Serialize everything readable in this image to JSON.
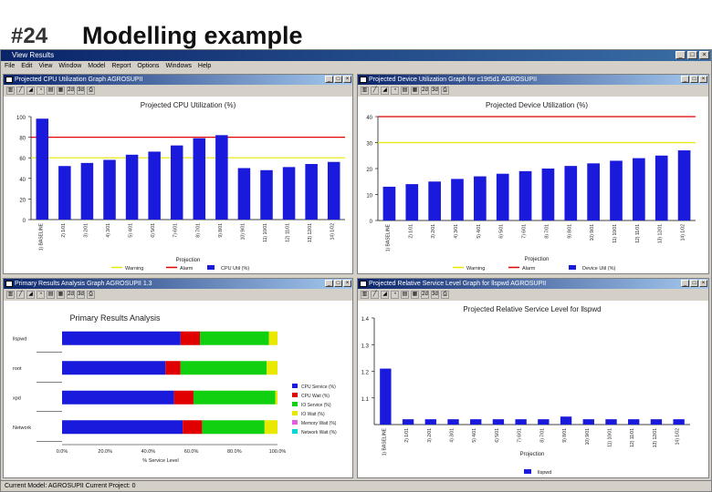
{
  "slide": {
    "number": "#24",
    "title": "Modelling example"
  },
  "app": {
    "title": "View Results",
    "menu": [
      "File",
      "Edit",
      "View",
      "Window",
      "Model",
      "Report",
      "Options",
      "Windows",
      "Help"
    ],
    "status": "Current Model: AGROSUPII   Current Project: 0"
  },
  "panes": [
    {
      "title": "Projected CPU Utilization Graph   AGROSUPII"
    },
    {
      "title": "Projected Device Utilization Graph for c19t5d1   AGROSUPII"
    },
    {
      "title": "Primary Results Analysis Graph   AGROSUPII 1.3"
    },
    {
      "title": "Projected Relative Service Level Graph for llspwd   AGROSUPII"
    }
  ],
  "colors": {
    "blue": "#1a1adc",
    "red": "#e00000",
    "yellow": "#e8e800",
    "green": "#10d010",
    "cyan": "#00d8d8"
  },
  "chart_data": [
    {
      "type": "bar",
      "title": "Projected CPU Utilization (%)",
      "xlabel": "Projection",
      "ylim": [
        0,
        100
      ],
      "yticks": [
        "100",
        "80",
        "60",
        "40",
        "20",
        "0"
      ],
      "categories": [
        "1) BASELINE",
        "2) 1/01",
        "3) 2/01",
        "4) 3/01",
        "5) 4/01",
        "6) 5/01",
        "7) 6/01",
        "8) 7/01",
        "9) 8/01",
        "10) 9/01",
        "11) 10/01",
        "12) 11/01",
        "13) 12/01",
        "14) 1/02"
      ],
      "values": [
        98,
        52,
        55,
        58,
        63,
        66,
        72,
        79,
        82,
        50,
        48,
        51,
        54,
        56
      ],
      "thresholds": {
        "warning": 60,
        "alarm": 80
      },
      "legend": [
        "Warning",
        "Alarm",
        "CPU Util (%)"
      ]
    },
    {
      "type": "bar",
      "title": "Projected Device Utilization (%)",
      "xlabel": "Projection",
      "ylim": [
        0,
        40
      ],
      "yticks": [
        "40",
        "30",
        "20",
        "10",
        "0"
      ],
      "categories": [
        "1) BASELINE",
        "2) 1/01",
        "3) 2/01",
        "4) 3/01",
        "5) 4/01",
        "6) 5/01",
        "7) 6/01",
        "8) 7/01",
        "9) 8/01",
        "10) 9/01",
        "11) 10/01",
        "12) 11/01",
        "13) 12/01",
        "14) 1/02"
      ],
      "values": [
        13,
        14,
        15,
        16,
        17,
        18,
        19,
        20,
        21,
        22,
        23,
        24,
        25,
        27
      ],
      "thresholds": {
        "warning": 30,
        "alarm": 40
      },
      "legend": [
        "Warning",
        "Alarm",
        "Device Util (%)"
      ]
    },
    {
      "type": "bar",
      "title": "Primary Results Analysis",
      "xlabel": "% Service Level",
      "xlim": [
        0,
        100
      ],
      "xticks": [
        "0.0%",
        "20.0%",
        "40.0%",
        "60.0%",
        "80.0%",
        "100.0%"
      ],
      "categories": [
        "llspwd",
        "root",
        "xpd",
        "Network"
      ],
      "series": [
        {
          "name": "CPU Service (%)",
          "values": [
            55,
            48,
            52,
            56
          ]
        },
        {
          "name": "CPU Wait (%)",
          "values": [
            9,
            7,
            9,
            9
          ]
        },
        {
          "name": "IO Service (%)",
          "values": [
            32,
            40,
            38,
            29
          ]
        },
        {
          "name": "IO Wait (%)",
          "values": [
            4,
            5,
            1,
            6
          ]
        },
        {
          "name": "Memory Wait (%)",
          "values": [
            0,
            0,
            0,
            0
          ]
        },
        {
          "name": "Network Wait (%)",
          "values": [
            0,
            0,
            0,
            0
          ]
        }
      ],
      "legend": [
        "CPU Service (%)",
        "CPU Wait (%)",
        "IO Service (%)",
        "IO Wait (%)",
        "Memory Wait (%)",
        "Network Wait (%)"
      ]
    },
    {
      "type": "bar",
      "title": "Projected Relative Service Level for llspwd",
      "xlabel": "Projection",
      "ylim": [
        1.0,
        1.4
      ],
      "yticks": [
        "1.4",
        "1.3",
        "1.2",
        "1.1"
      ],
      "categories": [
        "1) BASELINE",
        "2) 1/01",
        "3) 2/01",
        "4) 3/01",
        "5) 4/01",
        "6) 5/01",
        "7) 6/01",
        "8) 7/01",
        "9) 8/01",
        "10) 9/01",
        "11) 10/01",
        "12) 11/01",
        "13) 12/01",
        "14) 1/02"
      ],
      "values": [
        1.21,
        1.02,
        1.02,
        1.02,
        1.02,
        1.02,
        1.02,
        1.02,
        1.03,
        1.02,
        1.02,
        1.02,
        1.02,
        1.02
      ],
      "legend": [
        "llspwd"
      ]
    }
  ]
}
